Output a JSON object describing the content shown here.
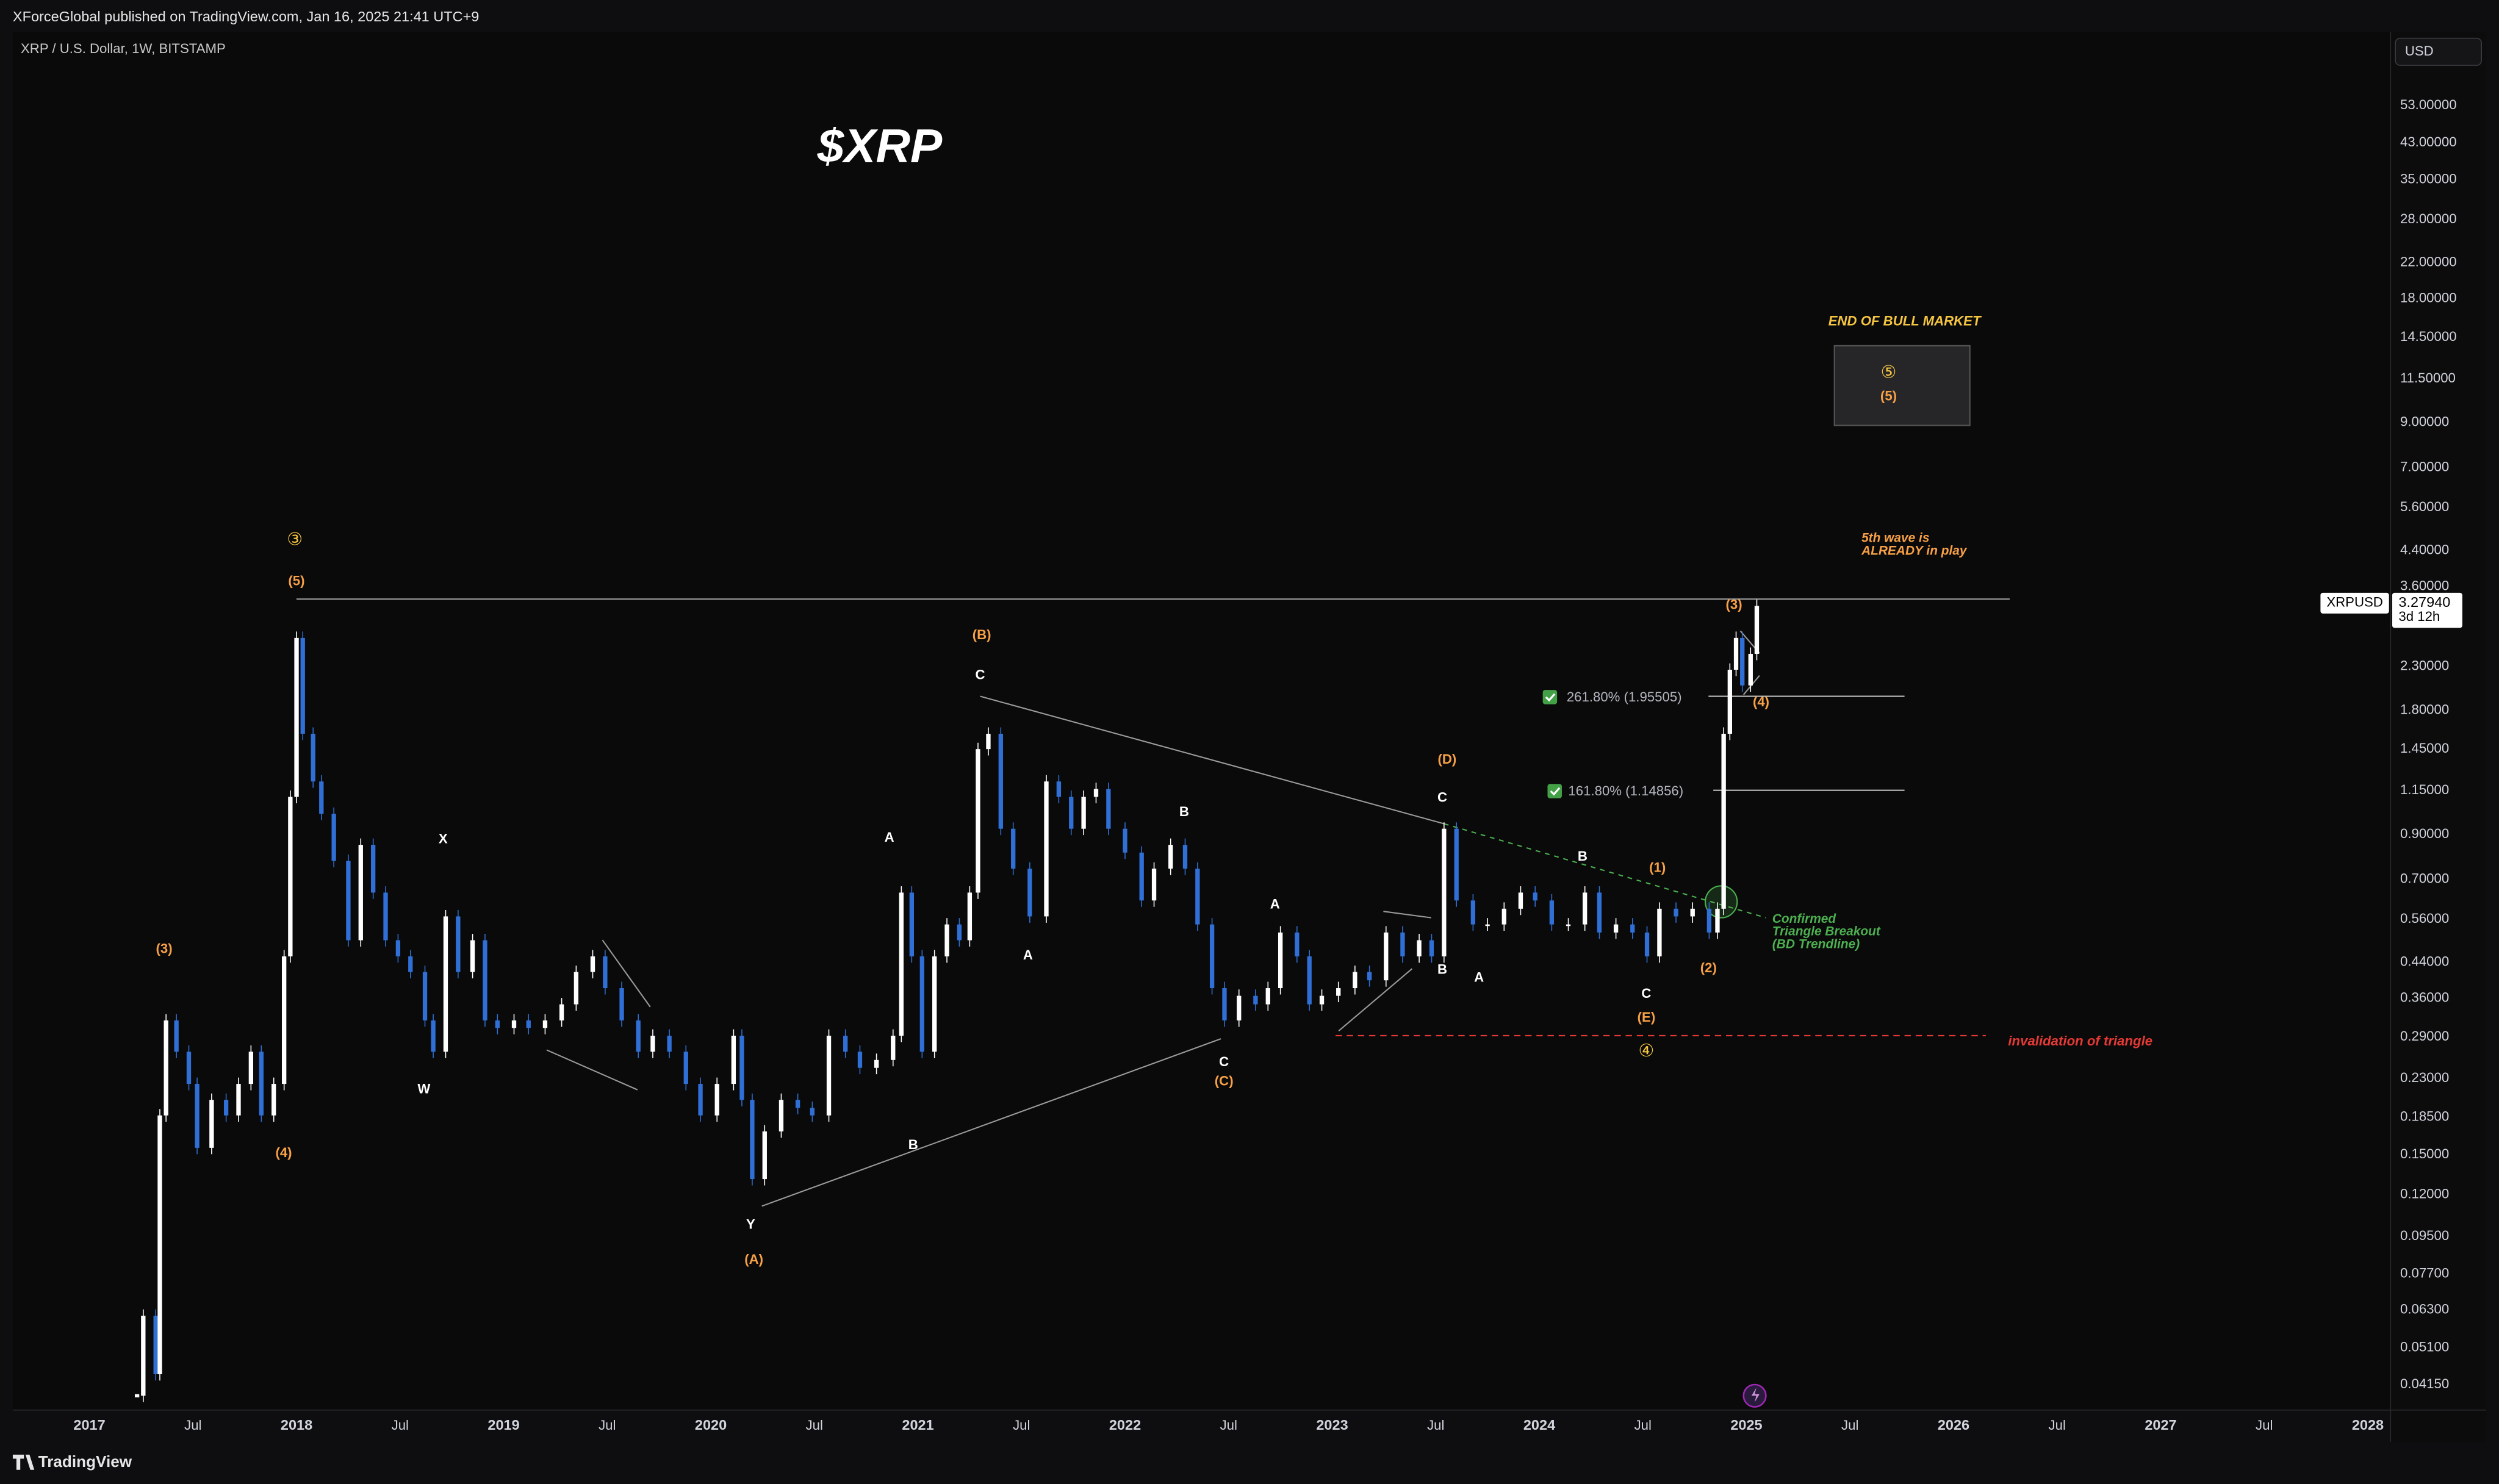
{
  "header": {
    "published": "XForceGlobal published on TradingView.com, Jan 16, 2025 21:41 UTC+9",
    "symbol": "XRP / U.S. Dollar, 1W, BITSTAMP",
    "currency": "USD"
  },
  "footer": {
    "brand": "TradingView"
  },
  "chart_data": {
    "type": "candlestick",
    "title": "$XRP",
    "x": [
      2017.23,
      2017.26,
      2017.32,
      2017.34,
      2017.37,
      2017.42,
      2017.48,
      2017.52,
      2017.59,
      2017.66,
      2017.72,
      2017.78,
      2017.83,
      2017.89,
      2017.94,
      2017.97,
      2018.0,
      2018.03,
      2018.08,
      2018.12,
      2018.18,
      2018.25,
      2018.31,
      2018.37,
      2018.43,
      2018.49,
      2018.55,
      2018.62,
      2018.66,
      2018.72,
      2018.78,
      2018.85,
      2018.91,
      2018.97,
      2019.05,
      2019.12,
      2019.2,
      2019.28,
      2019.35,
      2019.43,
      2019.49,
      2019.57,
      2019.65,
      2019.72,
      2019.8,
      2019.88,
      2019.95,
      2020.03,
      2020.11,
      2020.15,
      2020.2,
      2020.26,
      2020.34,
      2020.42,
      2020.49,
      2020.57,
      2020.65,
      2020.72,
      2020.8,
      2020.88,
      2020.92,
      2020.97,
      2021.02,
      2021.08,
      2021.14,
      2021.2,
      2021.25,
      2021.29,
      2021.34,
      2021.4,
      2021.46,
      2021.54,
      2021.62,
      2021.68,
      2021.74,
      2021.8,
      2021.86,
      2021.92,
      2022.0,
      2022.08,
      2022.14,
      2022.22,
      2022.29,
      2022.35,
      2022.42,
      2022.48,
      2022.55,
      2022.63,
      2022.69,
      2022.75,
      2022.83,
      2022.89,
      2022.95,
      2023.03,
      2023.11,
      2023.18,
      2023.26,
      2023.34,
      2023.42,
      2023.48,
      2023.54,
      2023.6,
      2023.68,
      2023.75,
      2023.83,
      2023.91,
      2023.98,
      2024.06,
      2024.14,
      2024.22,
      2024.29,
      2024.37,
      2024.45,
      2024.52,
      2024.58,
      2024.66,
      2024.74,
      2024.82,
      2024.86,
      2024.89,
      2024.92,
      2024.95,
      2024.98,
      2025.02,
      2025.05
    ],
    "series": [
      {
        "name": "XRPUSD",
        "color": "#ffffff",
        "down_color": "#2f6fd6",
        "values": [
          0.039,
          0.061,
          0.044,
          0.187,
          0.318,
          0.267,
          0.223,
          0.156,
          0.204,
          0.187,
          0.223,
          0.267,
          0.187,
          0.223,
          0.455,
          1.11,
          2.7,
          1.58,
          1.21,
          1.01,
          0.776,
          0.498,
          0.849,
          0.65,
          0.498,
          0.455,
          0.417,
          0.318,
          0.267,
          0.569,
          0.417,
          0.498,
          0.318,
          0.305,
          0.318,
          0.305,
          0.318,
          0.348,
          0.417,
          0.455,
          0.381,
          0.318,
          0.267,
          0.292,
          0.267,
          0.223,
          0.187,
          0.223,
          0.292,
          0.204,
          0.131,
          0.171,
          0.204,
          0.195,
          0.187,
          0.292,
          0.267,
          0.244,
          0.255,
          0.292,
          0.65,
          0.455,
          0.267,
          0.455,
          0.544,
          0.498,
          0.65,
          1.45,
          1.58,
          0.929,
          0.743,
          0.569,
          1.21,
          1.11,
          0.929,
          1.11,
          1.16,
          0.929,
          0.813,
          0.622,
          0.743,
          0.849,
          0.743,
          0.544,
          0.381,
          0.318,
          0.365,
          0.348,
          0.381,
          0.52,
          0.455,
          0.348,
          0.365,
          0.381,
          0.417,
          0.398,
          0.52,
          0.455,
          0.498,
          0.455,
          0.929,
          0.622,
          0.544,
          0.544,
          0.594,
          0.65,
          0.622,
          0.544,
          0.544,
          0.65,
          0.52,
          0.544,
          0.52,
          0.455,
          0.594,
          0.569,
          0.594,
          0.52,
          0.594,
          1.58,
          2.26,
          2.7,
          2.07,
          2.47,
          3.23
        ]
      }
    ],
    "xlim": [
      2016.63,
      2028.11
    ],
    "xticks": [
      2017,
      {
        "value": 2017.5,
        "label": "Jul"
      },
      2018,
      {
        "value": 2018.5,
        "label": "Jul"
      },
      2019,
      {
        "value": 2019.5,
        "label": "Jul"
      },
      2020,
      {
        "value": 2020.5,
        "label": "Jul"
      },
      2021,
      {
        "value": 2021.5,
        "label": "Jul"
      },
      2022,
      {
        "value": 2022.5,
        "label": "Jul"
      },
      2023,
      {
        "value": 2023.5,
        "label": "Jul"
      },
      2024,
      {
        "value": 2024.5,
        "label": "Jul"
      },
      2025,
      {
        "value": 2025.5,
        "label": "Jul"
      },
      2026,
      {
        "value": 2026.5,
        "label": "Jul"
      },
      2027,
      {
        "value": 2027.5,
        "label": "Jul"
      },
      2028
    ],
    "ylim": [
      0.036,
      80
    ],
    "yticks": [
      {
        "value": 0.0415,
        "label": "0.04150"
      },
      {
        "value": 0.051,
        "label": "0.05100"
      },
      {
        "value": 0.063,
        "label": "0.06300"
      },
      {
        "value": 0.077,
        "label": "0.07700"
      },
      {
        "value": 0.095,
        "label": "0.09500"
      },
      {
        "value": 0.12,
        "label": "0.12000"
      },
      {
        "value": 0.15,
        "label": "0.15000"
      },
      {
        "value": 0.185,
        "label": "0.18500"
      },
      {
        "value": 0.23,
        "label": "0.23000"
      },
      {
        "value": 0.29,
        "label": "0.29000"
      },
      {
        "value": 0.36,
        "label": "0.36000"
      },
      {
        "value": 0.44,
        "label": "0.44000"
      },
      {
        "value": 0.56,
        "label": "0.56000"
      },
      {
        "value": 0.7,
        "label": "0.70000"
      },
      {
        "value": 0.9,
        "label": "0.90000"
      },
      {
        "value": 1.15,
        "label": "1.15000"
      },
      {
        "value": 1.45,
        "label": "1.45000"
      },
      {
        "value": 1.8,
        "label": "1.80000"
      },
      {
        "value": 2.3,
        "label": "2.30000"
      },
      {
        "value": 3.6,
        "label": "3.60000"
      },
      {
        "value": 4.4,
        "label": "4.40000"
      },
      {
        "value": 5.6,
        "label": "5.60000"
      },
      {
        "value": 7,
        "label": "7.00000"
      },
      {
        "value": 9,
        "label": "9.00000"
      },
      {
        "value": 11.5,
        "label": "11.50000"
      },
      {
        "value": 14.5,
        "label": "14.50000"
      },
      {
        "value": 18,
        "label": "18.00000"
      },
      {
        "value": 22,
        "label": "22.00000"
      },
      {
        "value": 28,
        "label": "28.00000"
      },
      {
        "value": 35,
        "label": "35.00000"
      },
      {
        "value": 43,
        "label": "43.00000"
      },
      {
        "value": 53,
        "label": "53.00000"
      }
    ],
    "log_scale": true,
    "grid": false,
    "last_price": {
      "value": 3.2794,
      "label": "3.27940"
    },
    "countdown": "3d 12h",
    "annotations": [
      "③",
      "(5)",
      "(3)",
      "(4)",
      "X",
      "W",
      "Y",
      "(A)",
      "A",
      "B",
      "C",
      "(B)",
      "A",
      "B",
      "C",
      "(C)",
      "A",
      "B",
      "A",
      "(D)",
      "C",
      "B",
      "C",
      "(E)",
      "④",
      "(1)",
      "(2)",
      "(3)",
      "(4)",
      "⑤",
      "(5)",
      "END OF BULL MARKET",
      "5th wave is",
      "ALREADY in play",
      "Confirmed",
      "Triangle Breakout",
      "(BD Trendline)",
      "invalidation of triangle",
      "261.80% (1.95505)",
      "161.80% (1.14856)"
    ]
  }
}
